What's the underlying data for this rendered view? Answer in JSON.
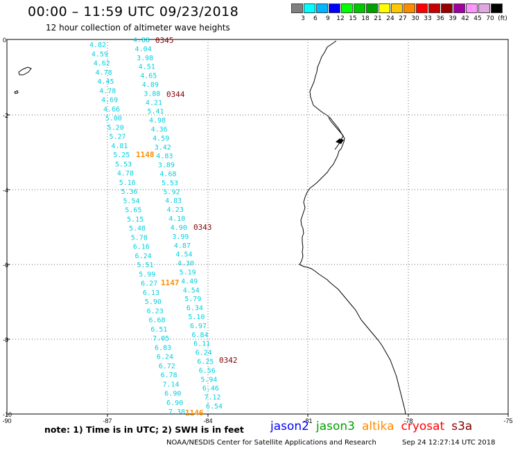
{
  "title": "00:00 – 11:59 UTC 09/23/2018",
  "subtitle": "12 hour collection of altimeter wave heights",
  "legend": {
    "colors": [
      "#808080",
      "#00ffff",
      "#00b4ff",
      "#0000ff",
      "#00ff00",
      "#00c800",
      "#00a000",
      "#ffff00",
      "#ffc800",
      "#ff8c00",
      "#ff0000",
      "#c80000",
      "#960000",
      "#a000a0",
      "#ff96ff",
      "#e0a8e0",
      "#000000"
    ],
    "labels": [
      "3",
      "6",
      "9",
      "12",
      "15",
      "18",
      "21",
      "24",
      "27",
      "30",
      "33",
      "36",
      "39",
      "42",
      "45",
      "70",
      "(ft)"
    ]
  },
  "axes": {
    "x_ticks": [
      "-90",
      "-87",
      "-84",
      "-81",
      "-78",
      "-75"
    ],
    "y_ticks": [
      "0",
      "-2",
      "-4",
      "-6",
      "-8",
      "-10"
    ]
  },
  "tracks": [
    {
      "satellite": "jason2",
      "color": "#00d0e0",
      "values": [
        "4.82",
        "4.59",
        "4.62",
        "4.78",
        "4.45",
        "4.78",
        "4.69",
        "4.66",
        "5.00",
        "5.20",
        "5.27",
        "4.81",
        "5.25",
        "5.53",
        "4.78",
        "5.16",
        "5.36",
        "5.54",
        "5.65",
        "5.15",
        "5.48",
        "5.78",
        "6.16",
        "6.24",
        "5.51",
        "5.99",
        "6.27",
        "6.13",
        "5.90",
        "6.23",
        "6.68",
        "6.51",
        "7.05",
        "6.83",
        "6.24",
        "6.72",
        "6.78",
        "7.14",
        "6.90",
        "6.90",
        "7.38"
      ]
    },
    {
      "satellite": "jason3",
      "color": "#00d0e0",
      "values": [
        "4.88",
        "4.04",
        "3.98",
        "4.51",
        "4.65",
        "4.89",
        "3.88",
        "4.21",
        "5.41",
        "4.98",
        "4.36",
        "4.59",
        "3.42",
        "4.83",
        "3.89",
        "4.68",
        "5.53",
        "5.92",
        "4.83",
        "4.23",
        "4.10",
        "4.90",
        "3.99",
        "4.87",
        "4.54",
        "4.30",
        "5.19",
        "4.49",
        "4.54",
        "5.79",
        "6.34",
        "5.10",
        "6.97",
        "6.84",
        "6.11",
        "6.24",
        "6.25",
        "6.56",
        "5.94",
        "6.46",
        "7.12",
        "6.54"
      ]
    }
  ],
  "time_labels": [
    {
      "text": "0345",
      "color": "#800000"
    },
    {
      "text": "0344",
      "color": "#800000"
    },
    {
      "text": "1148",
      "color": "#ff8c00"
    },
    {
      "text": "0343",
      "color": "#800000"
    },
    {
      "text": "1147",
      "color": "#ff8c00"
    },
    {
      "text": "0342",
      "color": "#800000"
    },
    {
      "text": "1146",
      "color": "#ff8c00"
    }
  ],
  "note": "note: 1) Time is in UTC; 2) SWH is in feet",
  "satellites": [
    {
      "name": "jason2",
      "color": "#0000ff"
    },
    {
      "name": "jason3",
      "color": "#00a000"
    },
    {
      "name": "altika",
      "color": "#ff8c00"
    },
    {
      "name": "cryosat",
      "color": "#ff0000"
    },
    {
      "name": "s3a",
      "color": "#800000"
    }
  ],
  "credit": "NOAA/NESDIS Center for Satellite Applications and Research",
  "timestamp": "Sep 24 12:27:14 UTC 2018"
}
